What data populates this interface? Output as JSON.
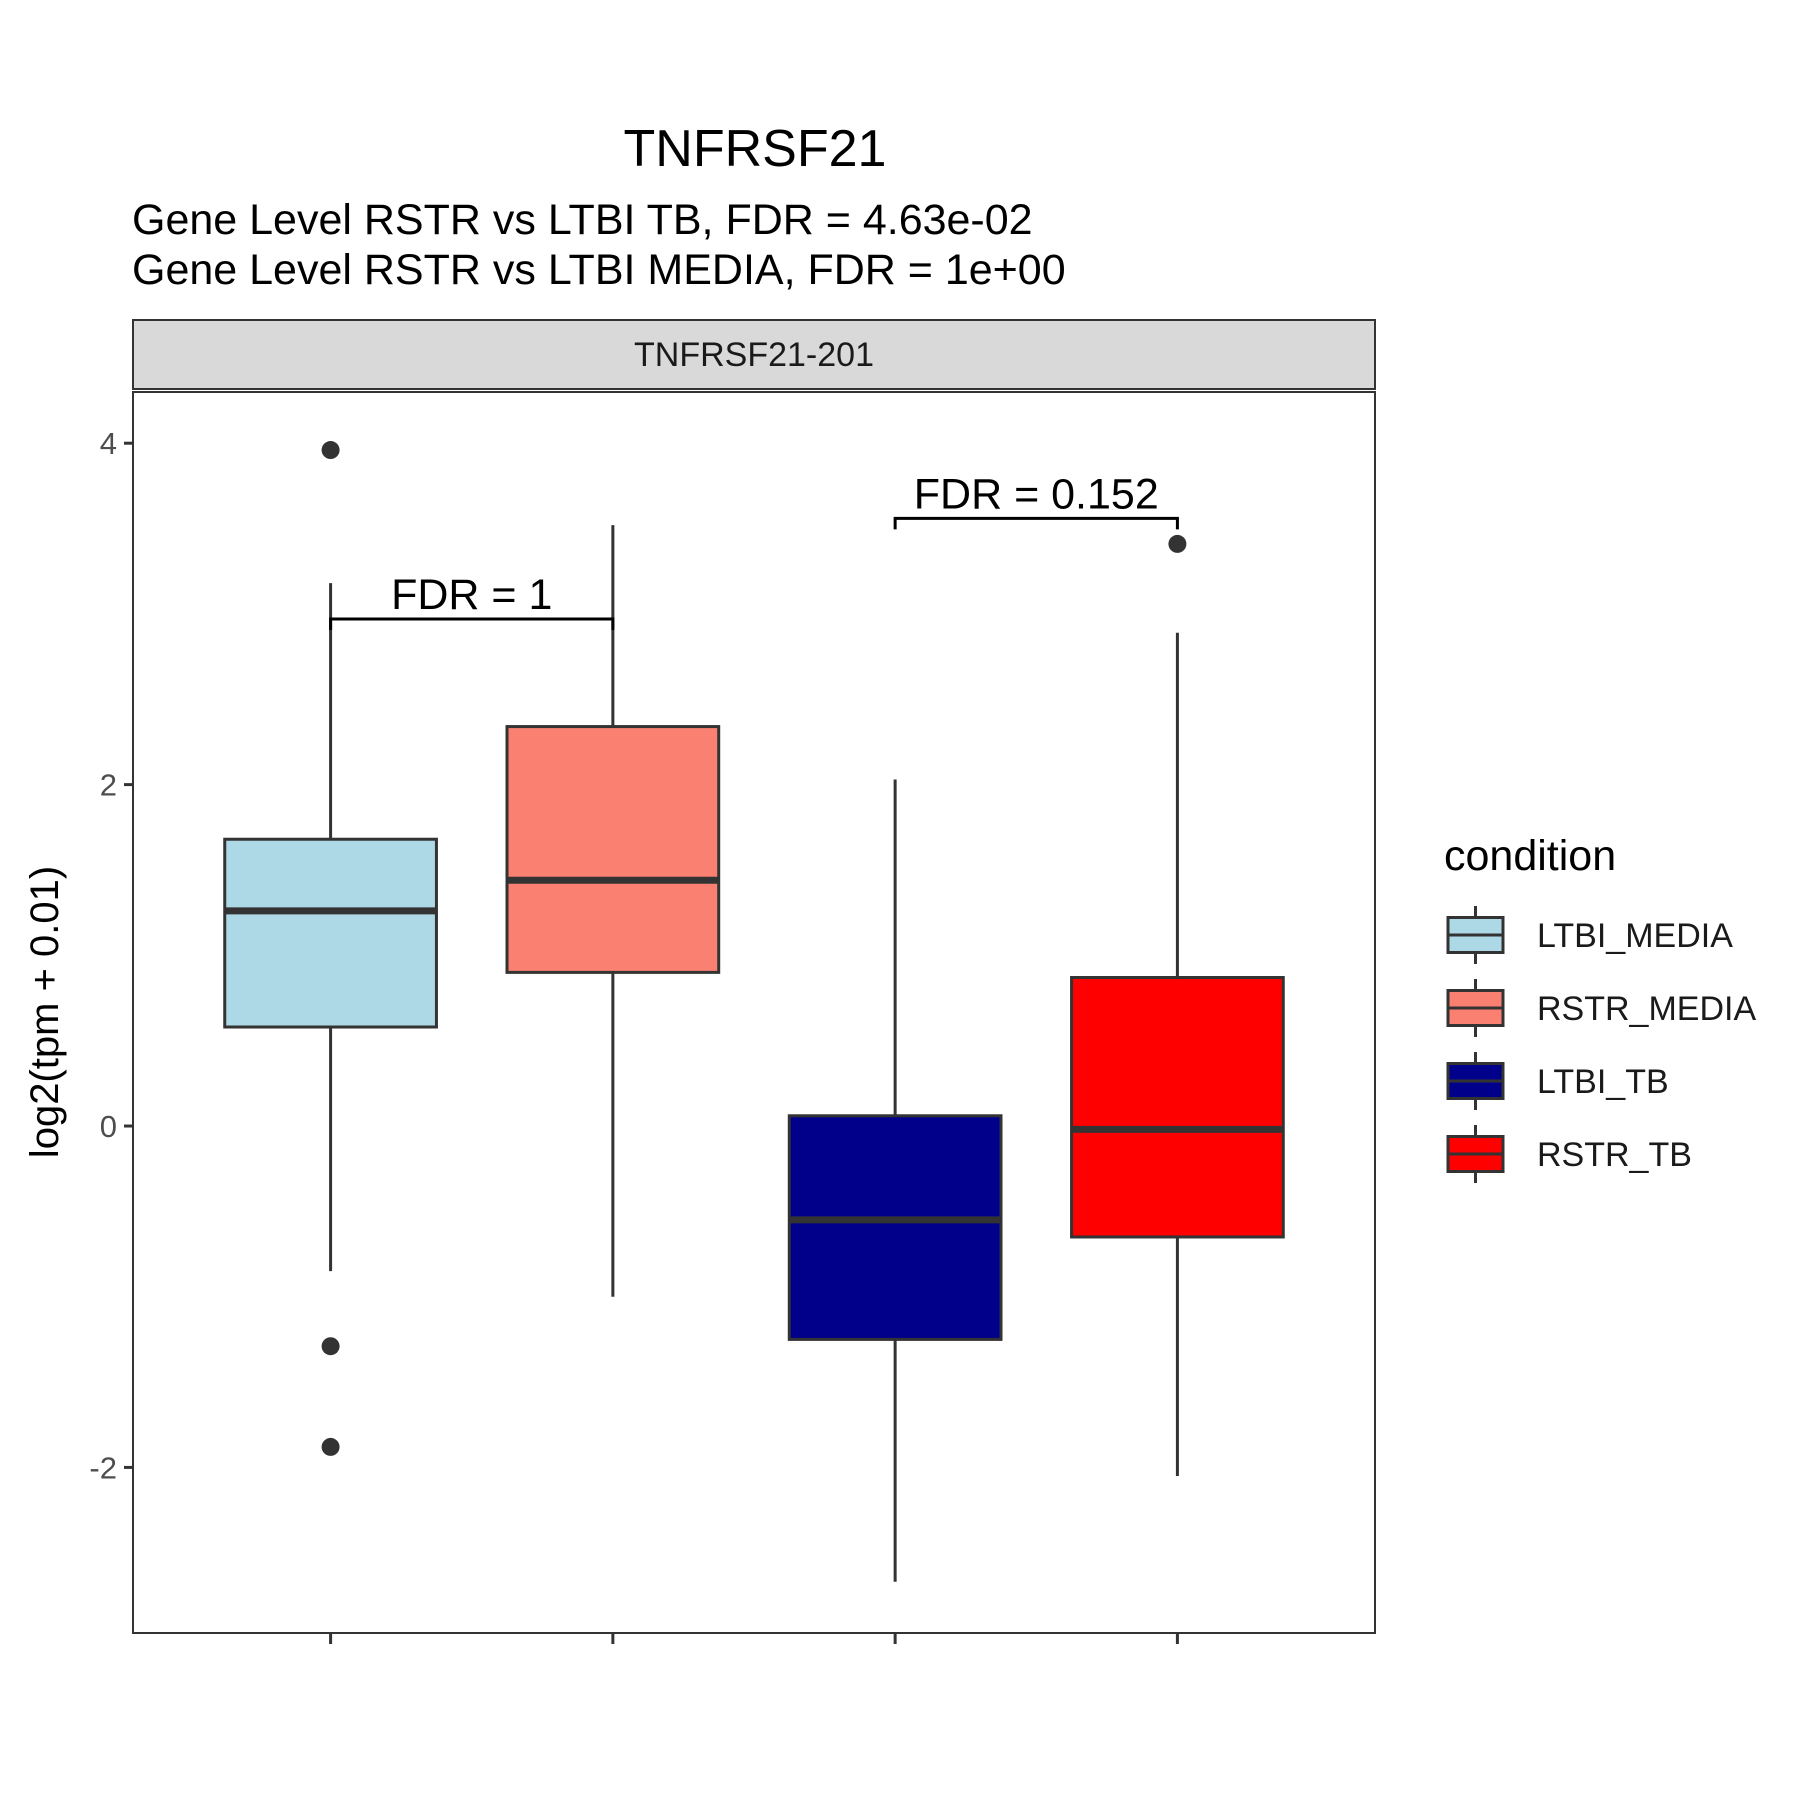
{
  "chart_data": {
    "type": "box",
    "title": "TNFRSF21",
    "subtitle_lines": [
      "Gene Level RSTR vs LTBI TB, FDR =  4.63e-02",
      "Gene Level RSTR vs LTBI MEDIA, FDR =  1e+00"
    ],
    "facet_label": "TNFRSF21-201",
    "xlabel": "",
    "ylabel": "log2(tpm + 0.01)",
    "ylim": [
      -2.97,
      4.3
    ],
    "yticks": [
      -2,
      0,
      2,
      4
    ],
    "ytick_labels": [
      "-2",
      "0",
      "2",
      "4"
    ],
    "grid": false,
    "legend_position": "right",
    "legend_title": "condition",
    "series": [
      {
        "name": "LTBI_MEDIA",
        "color": "#ADD8E6",
        "min": -0.85,
        "q1": 0.58,
        "median": 1.26,
        "q3": 1.68,
        "max": 3.18,
        "outliers": [
          3.96,
          -1.29,
          -1.88
        ]
      },
      {
        "name": "RSTR_MEDIA",
        "color": "#FA8072",
        "min": -1.0,
        "q1": 0.9,
        "median": 1.44,
        "q3": 2.34,
        "max": 3.52,
        "outliers": []
      },
      {
        "name": "LTBI_TB",
        "color": "#00008B",
        "min": -2.67,
        "q1": -1.25,
        "median": -0.55,
        "q3": 0.06,
        "max": 2.03,
        "outliers": []
      },
      {
        "name": "RSTR_TB",
        "color": "#FF0000",
        "min": -2.05,
        "q1": -0.65,
        "median": -0.02,
        "q3": 0.87,
        "max": 2.89,
        "outliers": [
          3.41
        ]
      }
    ],
    "annotations": [
      {
        "text": "FDR =  1",
        "from": 0,
        "to": 1,
        "y": 2.97
      },
      {
        "text": "FDR =  0.152",
        "from": 2,
        "to": 3,
        "y": 3.56
      }
    ]
  }
}
